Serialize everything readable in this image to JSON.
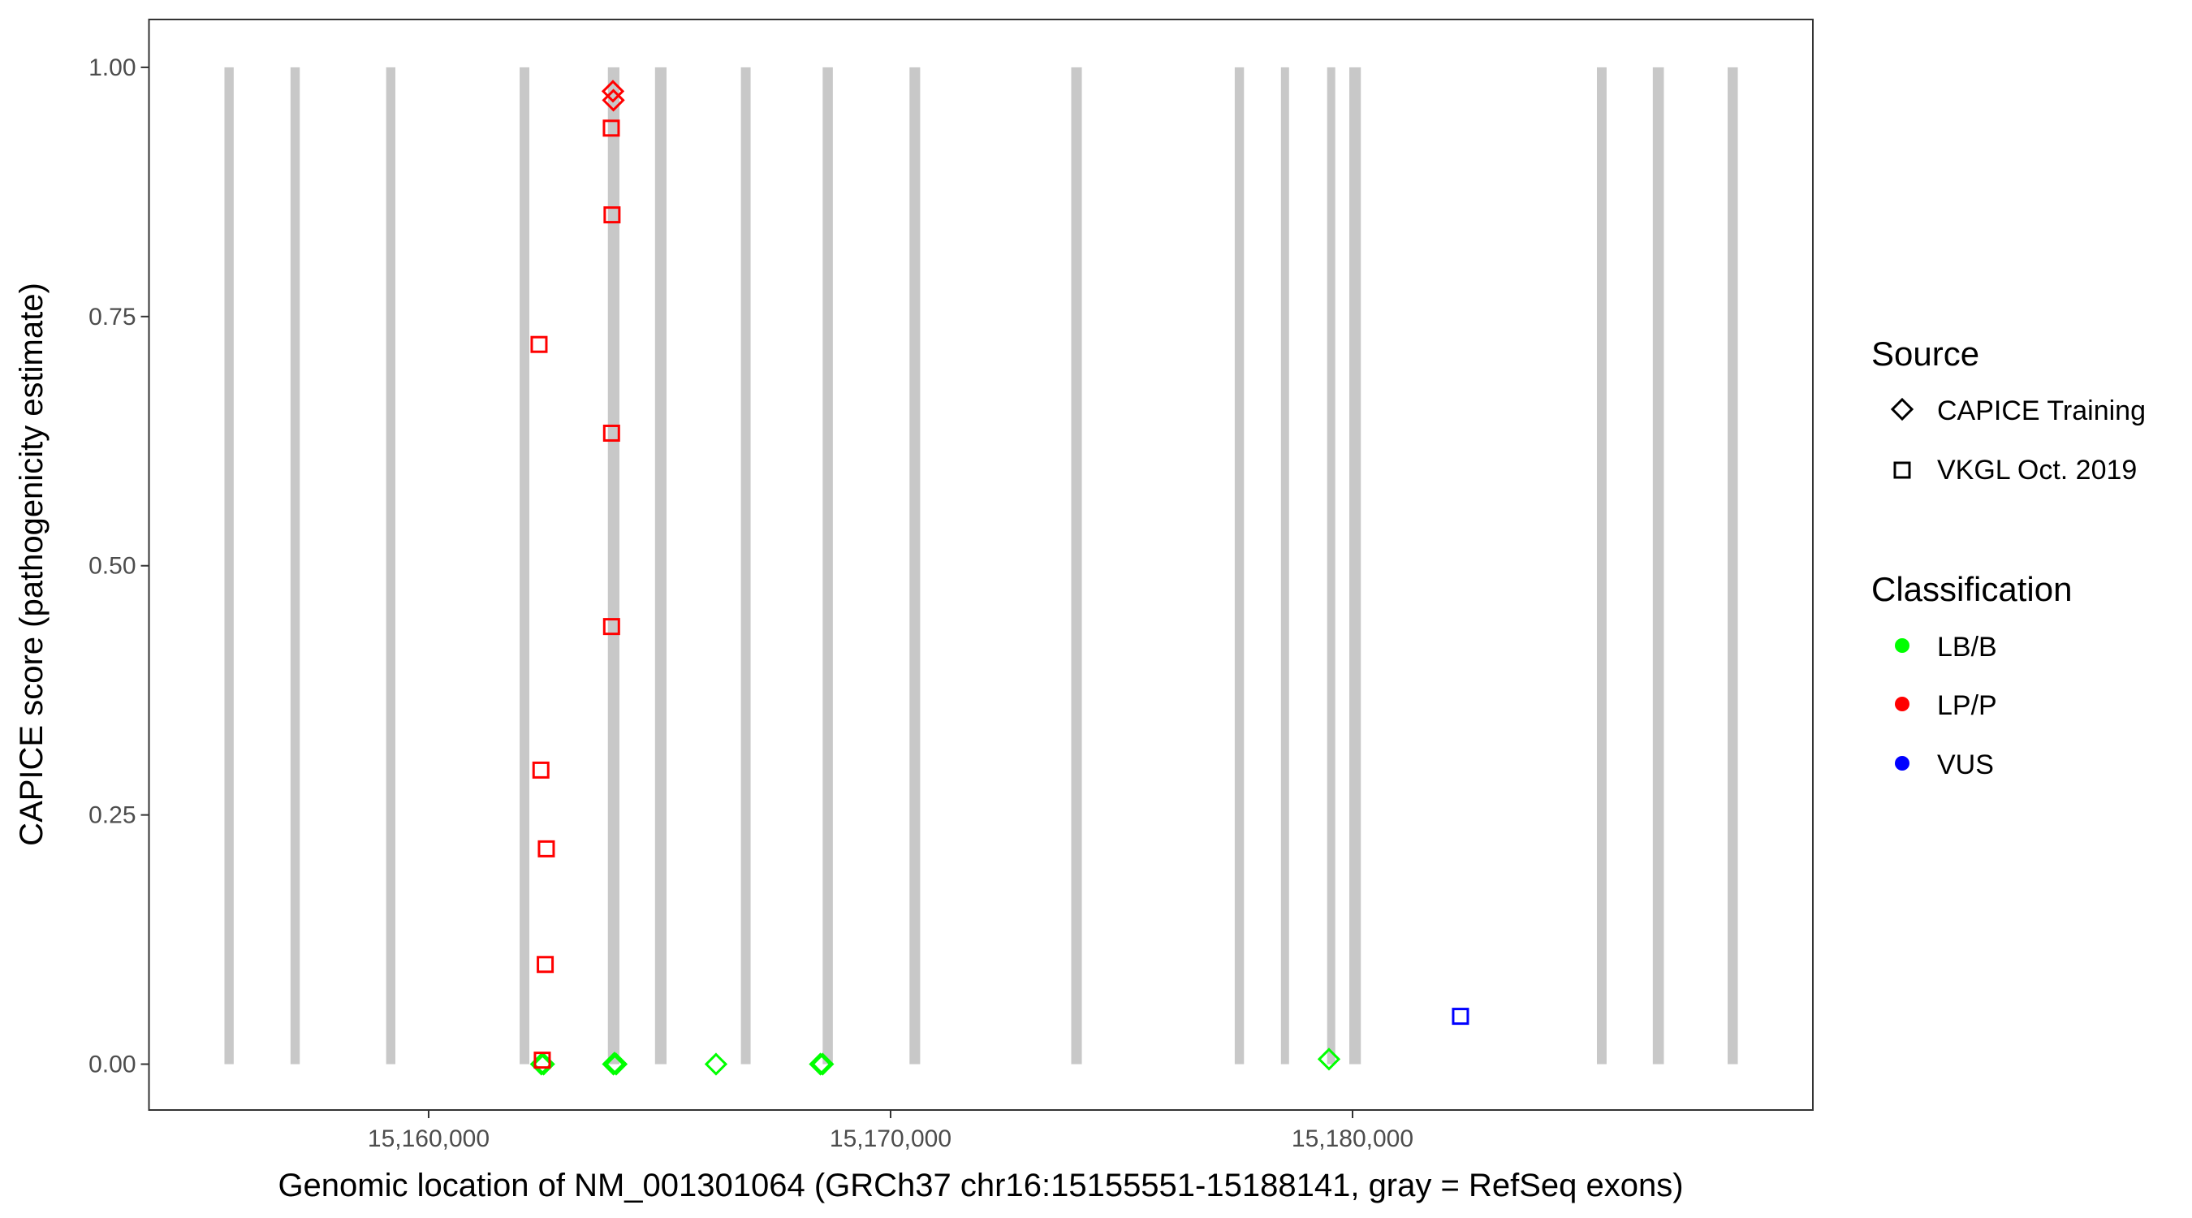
{
  "chart_data": {
    "type": "scatter",
    "title": "",
    "xlabel": "Genomic location of NM_001301064 (GRCh37 chr16:15155551-15188141, gray = RefSeq exons)",
    "ylabel": "CAPICE score (pathogenicity estimate)",
    "xlim": [
      15153946,
      15189965
    ],
    "ylim": [
      -0.046,
      1.048
    ],
    "x_ticks": [
      15160000,
      15170000,
      15180000
    ],
    "x_tick_labels": [
      "15,160,000",
      "15,170,000",
      "15,180,000"
    ],
    "y_ticks": [
      0,
      0.25,
      0.5,
      0.75,
      1.0
    ],
    "y_tick_labels": [
      "0.00",
      "0.25",
      "0.50",
      "0.75",
      "1.00"
    ],
    "grid": false,
    "exon_color": "#c8c8c8",
    "exons": [
      [
        15155580,
        15155780
      ],
      [
        15157010,
        15157210
      ],
      [
        15159080,
        15159280
      ],
      [
        15161970,
        15162180
      ],
      [
        15163880,
        15164130
      ],
      [
        15164900,
        15165150
      ],
      [
        15166760,
        15166970
      ],
      [
        15168530,
        15168750
      ],
      [
        15170410,
        15170640
      ],
      [
        15173910,
        15174140
      ],
      [
        15177450,
        15177650
      ],
      [
        15178450,
        15178610
      ],
      [
        15179450,
        15179610
      ],
      [
        15179930,
        15180180
      ],
      [
        15185290,
        15185500
      ],
      [
        15186500,
        15186740
      ],
      [
        15188120,
        15188340
      ]
    ],
    "legend": {
      "placement": "right",
      "source_title": "Source",
      "source_entries": [
        {
          "label": "CAPICE Training",
          "shape": "diamond"
        },
        {
          "label": "VKGL Oct. 2019",
          "shape": "square"
        }
      ],
      "class_title": "Classification",
      "class_entries": [
        {
          "label": "LB/B",
          "color": "#00ff00"
        },
        {
          "label": "LP/P",
          "color": "#ff0000"
        },
        {
          "label": "VUS",
          "color": "#0000ff"
        }
      ]
    },
    "points": [
      {
        "x": 15163990,
        "y": 0.976,
        "source": "CAPICE Training",
        "class": "LP/P"
      },
      {
        "x": 15164000,
        "y": 0.967,
        "source": "CAPICE Training",
        "class": "LP/P"
      },
      {
        "x": 15163954,
        "y": 0.939,
        "source": "VKGL Oct. 2019",
        "class": "LP/P"
      },
      {
        "x": 15163970,
        "y": 0.852,
        "source": "VKGL Oct. 2019",
        "class": "LP/P"
      },
      {
        "x": 15162390,
        "y": 0.722,
        "source": "VKGL Oct. 2019",
        "class": "LP/P"
      },
      {
        "x": 15163960,
        "y": 0.633,
        "source": "VKGL Oct. 2019",
        "class": "LP/P"
      },
      {
        "x": 15163960,
        "y": 0.439,
        "source": "VKGL Oct. 2019",
        "class": "LP/P"
      },
      {
        "x": 15162430,
        "y": 0.295,
        "source": "VKGL Oct. 2019",
        "class": "LP/P"
      },
      {
        "x": 15162548,
        "y": 0.216,
        "source": "VKGL Oct. 2019",
        "class": "LP/P"
      },
      {
        "x": 15162524,
        "y": 0.1,
        "source": "VKGL Oct. 2019",
        "class": "LP/P"
      },
      {
        "x": 15162440,
        "y": 0.0,
        "source": "CAPICE Training",
        "class": "LB/B"
      },
      {
        "x": 15162490,
        "y": 0.0,
        "source": "CAPICE Training",
        "class": "LB/B"
      },
      {
        "x": 15162460,
        "y": 0.004,
        "source": "VKGL Oct. 2019",
        "class": "LP/P"
      },
      {
        "x": 15164000,
        "y": 0.0,
        "source": "CAPICE Training",
        "class": "LB/B"
      },
      {
        "x": 15164025,
        "y": 0.001,
        "source": "CAPICE Training",
        "class": "LB/B"
      },
      {
        "x": 15164060,
        "y": 0.0,
        "source": "CAPICE Training",
        "class": "LB/B"
      },
      {
        "x": 15166221,
        "y": 0.0,
        "source": "CAPICE Training",
        "class": "LB/B"
      },
      {
        "x": 15168480,
        "y": 0.0,
        "source": "CAPICE Training",
        "class": "LB/B"
      },
      {
        "x": 15168530,
        "y": 0.0,
        "source": "CAPICE Training",
        "class": "LB/B"
      },
      {
        "x": 15179490,
        "y": 0.005,
        "source": "CAPICE Training",
        "class": "LB/B"
      },
      {
        "x": 15182337,
        "y": 0.048,
        "source": "VKGL Oct. 2019",
        "class": "VUS"
      }
    ]
  }
}
